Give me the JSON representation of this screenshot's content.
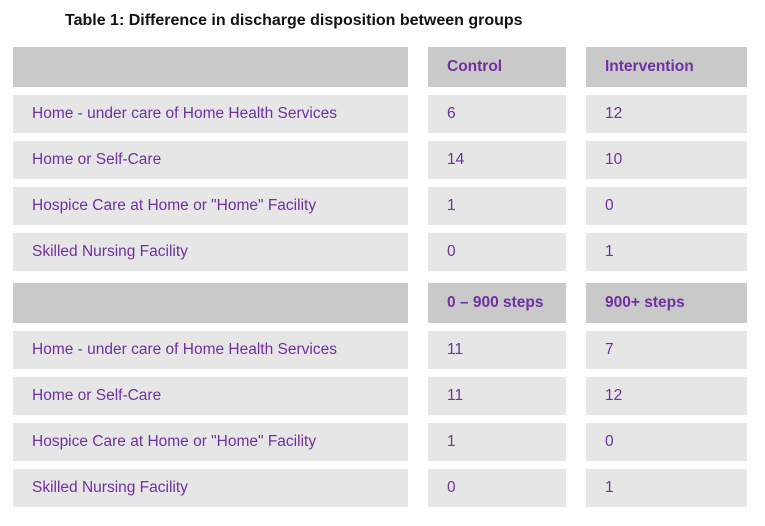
{
  "caption": "Table 1: Difference in discharge disposition between groups",
  "colors": {
    "header_bg": "#c9c9c9",
    "row_bg": "#e6e6e6",
    "table_text": "#7030a0",
    "caption_text": "#111111",
    "page_bg": "#ffffff"
  },
  "tables": [
    {
      "name": "control-vs-intervention",
      "headers": [
        "",
        "Control",
        "Intervention"
      ],
      "rows": [
        {
          "label": "Home - under care of Home Health Services",
          "values": [
            "6",
            "12"
          ]
        },
        {
          "label": "Home or Self-Care",
          "values": [
            "14",
            "10"
          ]
        },
        {
          "label": "Hospice Care at Home or \"Home\" Facility",
          "values": [
            "1",
            "0"
          ]
        },
        {
          "label": "Skilled Nursing Facility",
          "values": [
            "0",
            "1"
          ]
        }
      ]
    },
    {
      "name": "steps-groups",
      "headers": [
        "",
        "0 – 900 steps",
        "900+ steps"
      ],
      "rows": [
        {
          "label": "Home - under care of Home Health Services",
          "values": [
            "11",
            "7"
          ]
        },
        {
          "label": "Home or Self-Care",
          "values": [
            "11",
            "12"
          ]
        },
        {
          "label": "Hospice Care at Home or \"Home\" Facility",
          "values": [
            "1",
            "0"
          ]
        },
        {
          "label": "Skilled Nursing Facility",
          "values": [
            "0",
            "1"
          ]
        }
      ]
    }
  ]
}
